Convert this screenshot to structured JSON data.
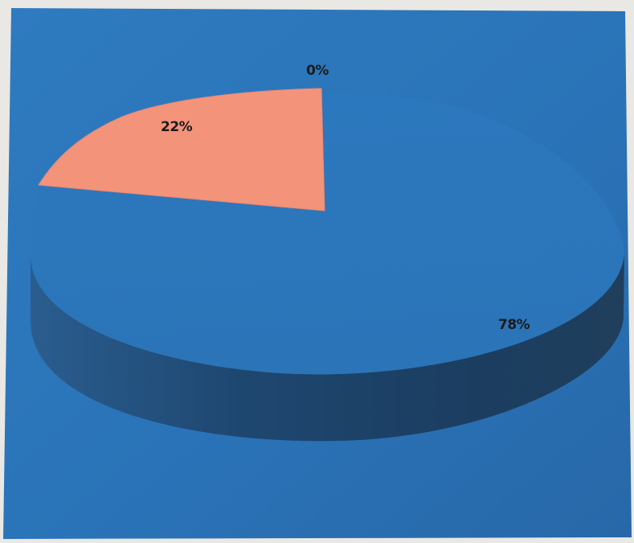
{
  "chart_data": {
    "type": "pie",
    "title": "",
    "slices": [
      {
        "value": 22,
        "label": "22%",
        "color": "#f3937a"
      },
      {
        "value": 78,
        "label": "78%",
        "color": "#2a73b8"
      },
      {
        "value": 0,
        "label": "0%",
        "color": "#2a73b8"
      }
    ],
    "legend": "none",
    "three_d": true,
    "exploded_slice": "22%"
  },
  "colors": {
    "panel_blue": "#2a73b8",
    "side_dark": "#1f4568",
    "slice_salmon": "#f3937a",
    "photo_border": "#e9e8e4"
  }
}
